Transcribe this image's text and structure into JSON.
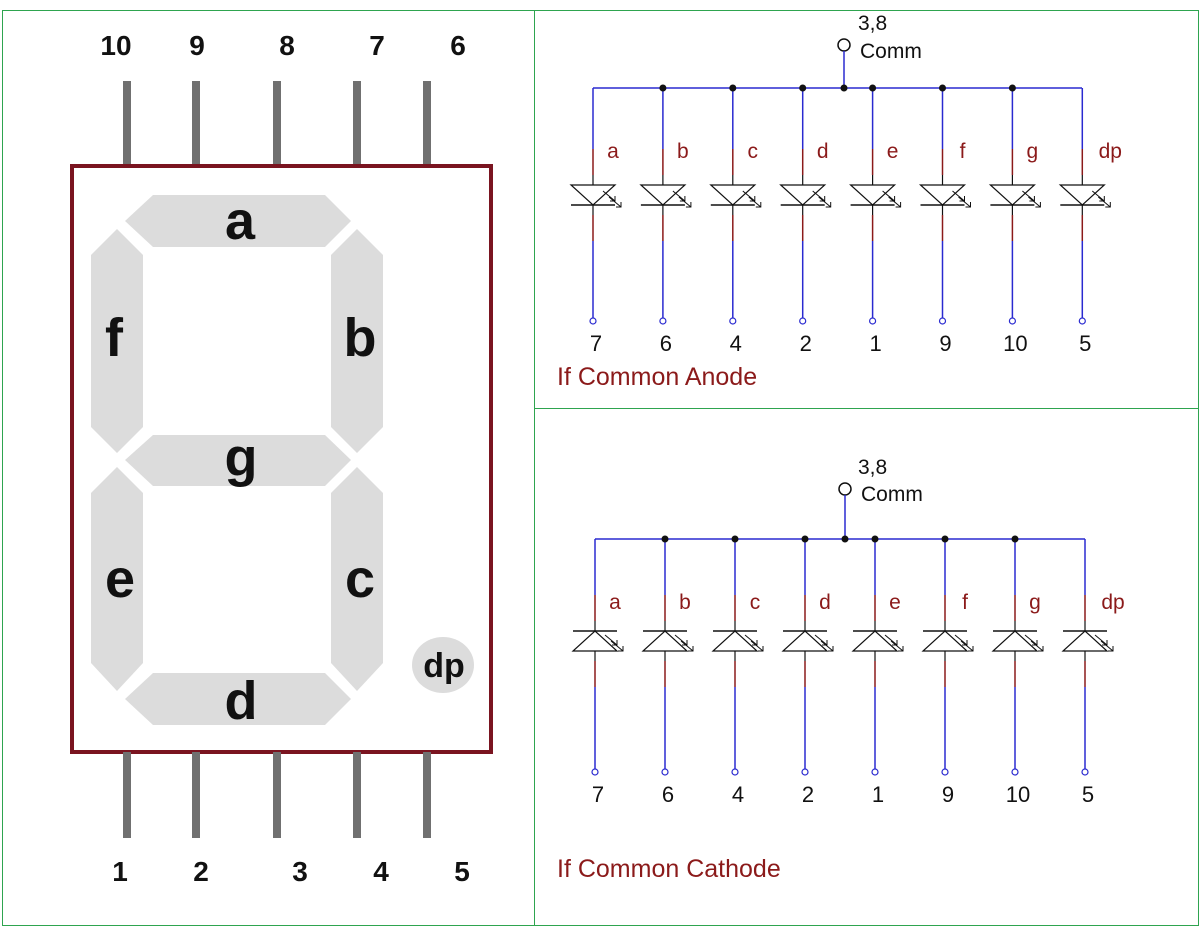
{
  "colors": {
    "segment_fill": "#dcdcdc",
    "package_border": "#7a1420",
    "pin": "#707070",
    "wire": "#2a2ad0",
    "label_red": "#8b1a1a",
    "panel_border": "#2ea44f"
  },
  "package": {
    "top_pins": [
      "10",
      "9",
      "8",
      "7",
      "6"
    ],
    "bottom_pins": [
      "1",
      "2",
      "3",
      "4",
      "5"
    ],
    "segments": {
      "a": "a",
      "b": "b",
      "c": "c",
      "d": "d",
      "e": "e",
      "f": "f",
      "g": "g",
      "dp": "dp"
    }
  },
  "anode": {
    "common_pins": "3,8",
    "common_label": "Comm",
    "segments": [
      "a",
      "b",
      "c",
      "d",
      "e",
      "f",
      "g",
      "dp"
    ],
    "pins": [
      "7",
      "6",
      "4",
      "2",
      "1",
      "9",
      "10",
      "5"
    ],
    "title": "If Common Anode"
  },
  "cathode": {
    "common_pins": "3,8",
    "common_label": "Comm",
    "segments": [
      "a",
      "b",
      "c",
      "d",
      "e",
      "f",
      "g",
      "dp"
    ],
    "pins": [
      "7",
      "6",
      "4",
      "2",
      "1",
      "9",
      "10",
      "5"
    ],
    "title": "If Common Cathode"
  }
}
